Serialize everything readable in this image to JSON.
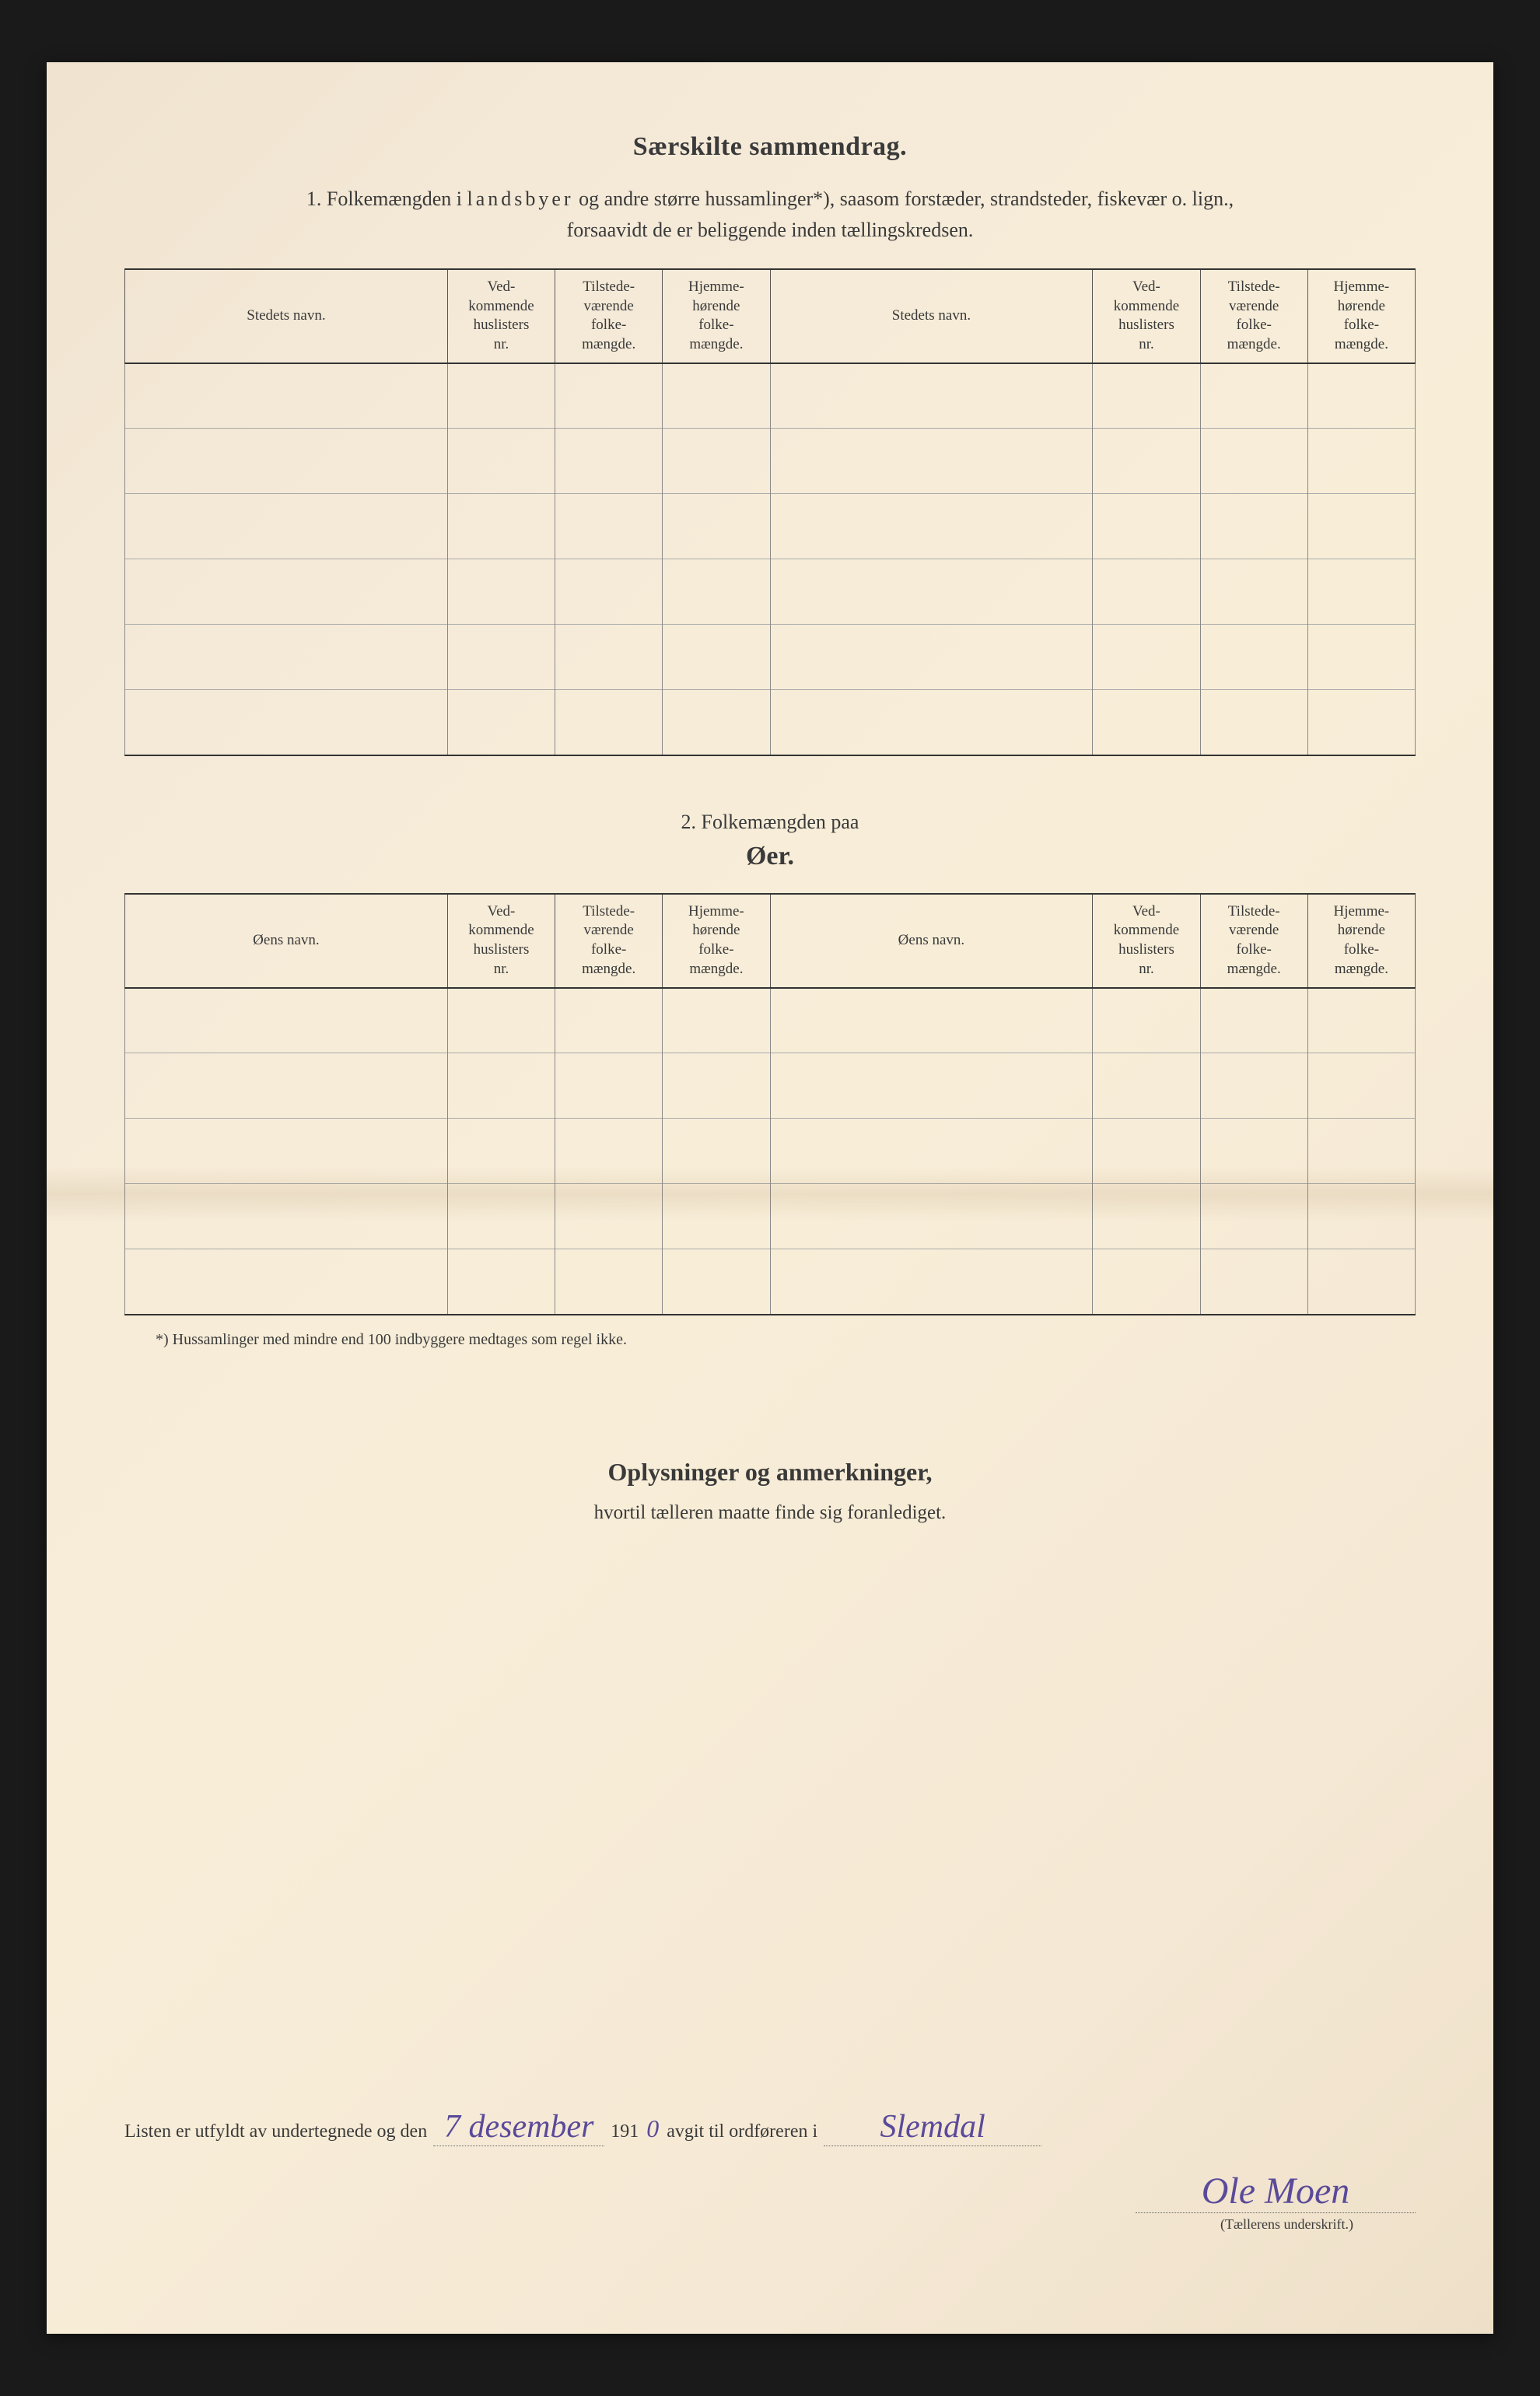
{
  "header": {
    "title": "Særskilte sammendrag.",
    "line1_prefix": "1.   Folkemængden i ",
    "line1_spaced": "landsbyer",
    "line1_suffix": " og andre større hussamlinger*), saasom forstæder, strandsteder, fiskevær o. lign.,",
    "line2": "forsaavidt de er beliggende inden tællingskredsen."
  },
  "table1": {
    "cols": {
      "name": "Stedets navn.",
      "huslister": "Ved-\nkommende\nhuslisters\nnr.",
      "tilstede": "Tilstede-\nværende\nfolke-\nmængde.",
      "hjemme": "Hjemme-\nhørende\nfolke-\nmængde."
    },
    "row_count": 6
  },
  "section2": {
    "lead": "2.   Folkemængden paa",
    "title": "Øer."
  },
  "table2": {
    "cols": {
      "name": "Øens navn.",
      "huslister": "Ved-\nkommende\nhuslisters\nnr.",
      "tilstede": "Tilstede-\nværende\nfolke-\nmængde.",
      "hjemme": "Hjemme-\nhørende\nfolke-\nmængde."
    },
    "row_count": 5
  },
  "footnote": "*) Hussamlinger med mindre end 100 indbyggere medtages som regel ikke.",
  "section3": {
    "title": "Oplysninger og anmerkninger,",
    "sub": "hvortil tælleren maatte finde sig foranlediget."
  },
  "signature": {
    "text_before_date": "Listen er utfyldt av undertegnede og den",
    "date_hand": "7 desember",
    "year_prefix": "191",
    "year_hand": "0",
    "text_after_year": "avgit til ordføreren i",
    "place_hand": "Slemdal",
    "name_hand": "Ole Moen",
    "caption": "(Tællerens underskrift.)"
  },
  "style": {
    "page_bg": "#f5ead8",
    "body_bg": "#1a1a1a",
    "text_color": "#3a3a3a",
    "rule_strong": "#333333",
    "rule_light": "#aaaaaa",
    "ink_color": "#5a4a9a",
    "title_fontsize": 34,
    "body_fontsize": 26,
    "header_fontsize": 19,
    "footnote_fontsize": 20
  }
}
